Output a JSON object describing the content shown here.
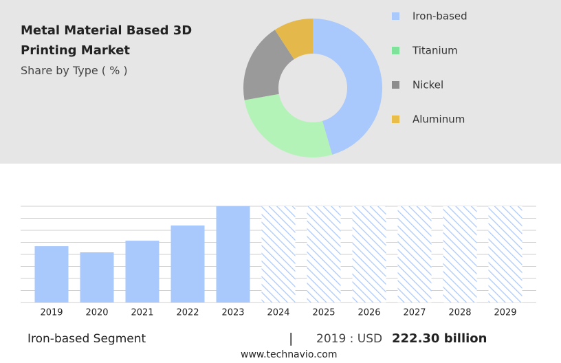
{
  "header": {
    "title": "Metal Material Based 3D Printing Market",
    "subtitle": "Share by Type ( % )"
  },
  "chart_data": [
    {
      "type": "donut",
      "categories": [
        "Iron-based",
        "Titanium",
        "Nickel",
        "Aluminum"
      ],
      "values": [
        45.5,
        26.7,
        18.6,
        9.2
      ],
      "colors": [
        "#a9c8fb",
        "#b4f3b8",
        "#9a9a9a",
        "#e5b84c"
      ],
      "legend_colors": [
        "#a9c8fb",
        "#7fe29a",
        "#8d8d8d",
        "#e8bd4a"
      ]
    },
    {
      "type": "bar",
      "categories": [
        "2019",
        "2020",
        "2021",
        "2022",
        "2023",
        "2024",
        "2025",
        "2026",
        "2027",
        "2028",
        "2029"
      ],
      "values": [
        222.3,
        198,
        244,
        304,
        380,
        null,
        null,
        null,
        null,
        null,
        null
      ],
      "color": "#a9c8fb",
      "ylim": [
        0,
        380
      ],
      "yticks": [
        0,
        47.5,
        95,
        142.5,
        190,
        237.5,
        285,
        332.5,
        380
      ],
      "grid": true
    }
  ],
  "footer": {
    "segment": "Iron-based Segment",
    "separator": "|",
    "prefix": "2019 : USD",
    "value": "222.30 billion",
    "source": "www.technavio.com"
  }
}
